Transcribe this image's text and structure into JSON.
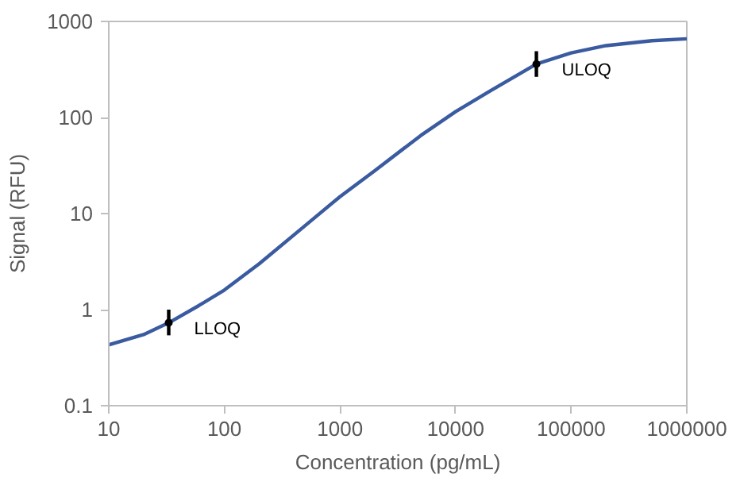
{
  "chart_data": {
    "type": "line",
    "xlabel": "Concentration (pg/mL)",
    "ylabel": "Signal (RFU)",
    "log": "xy",
    "grid": false,
    "marker": "none",
    "line_style": "solid",
    "x": [
      10,
      20,
      33,
      60,
      100,
      200,
      500,
      1000,
      2000,
      5000,
      10000,
      20000,
      50000,
      100000,
      200000,
      500000,
      1000000
    ],
    "series": [
      {
        "color": "#3a5ba0",
        "values": [
          0.43,
          0.55,
          0.73,
          1.1,
          1.6,
          3.0,
          7.5,
          15,
          28,
          65,
          115,
          190,
          360,
          470,
          560,
          630,
          660
        ]
      },
      {
        "type": "scatter",
        "marker": "circle",
        "color": "#000000",
        "x": [
          33,
          50000
        ],
        "values": [
          0.73,
          360
        ],
        "errors": [
          [
            0.54,
            1.0
          ],
          [
            265,
            490
          ]
        ]
      }
    ],
    "xlim": [
      10,
      1000000
    ],
    "xticks": [
      10,
      100,
      1000,
      10000,
      100000,
      1000000
    ],
    "ylim": [
      0.1,
      1000
    ],
    "yticks": [
      0.1,
      1,
      10,
      100,
      1000
    ],
    "annotations": [
      {
        "text": "LLOQ",
        "x": 33,
        "y": 0.73
      },
      {
        "text": "ULOQ",
        "x": 50000,
        "y": 360
      }
    ]
  }
}
